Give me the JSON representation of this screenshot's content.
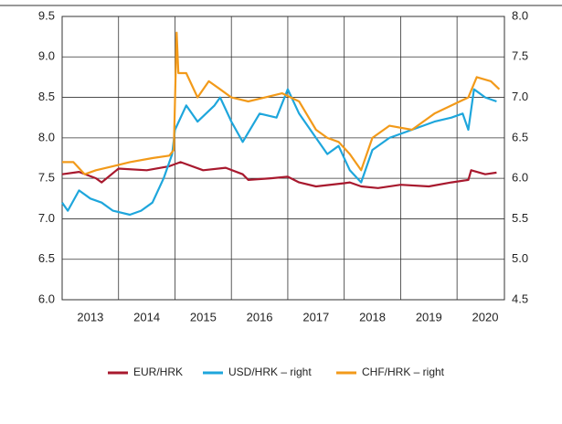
{
  "chart_data": {
    "type": "line",
    "xlim": [
      2013.0,
      2020.84
    ],
    "xticks": [
      {
        "value": 2013,
        "label": "2013"
      },
      {
        "value": 2014,
        "label": "2014"
      },
      {
        "value": 2015,
        "label": "2015"
      },
      {
        "value": 2016,
        "label": "2016"
      },
      {
        "value": 2017,
        "label": "2017"
      },
      {
        "value": 2018,
        "label": "2018"
      },
      {
        "value": 2019,
        "label": "2019"
      },
      {
        "value": 2020,
        "label": "2020"
      }
    ],
    "ylim": [
      6.0,
      9.5
    ],
    "yticks": [
      {
        "value": 6.0,
        "label": "6.0"
      },
      {
        "value": 6.5,
        "label": "6.5"
      },
      {
        "value": 7.0,
        "label": "7.0"
      },
      {
        "value": 7.5,
        "label": "7.5"
      },
      {
        "value": 8.0,
        "label": "8.0"
      },
      {
        "value": 8.5,
        "label": "8.5"
      },
      {
        "value": 9.0,
        "label": "9.0"
      },
      {
        "value": 9.5,
        "label": "9.5"
      }
    ],
    "y2lim": [
      4.5,
      8.0
    ],
    "y2ticks": [
      {
        "value": 4.5,
        "label": "4.5"
      },
      {
        "value": 5.0,
        "label": "5.0"
      },
      {
        "value": 5.5,
        "label": "5.5"
      },
      {
        "value": 6.0,
        "label": "6.0"
      },
      {
        "value": 6.5,
        "label": "6.5"
      },
      {
        "value": 7.0,
        "label": "7.0"
      },
      {
        "value": 7.5,
        "label": "7.5"
      },
      {
        "value": 8.0,
        "label": "8.0"
      }
    ],
    "grid": true,
    "series": [
      {
        "name": "EUR/HRK",
        "color": "#a8192e",
        "x": [
          2013.0,
          2013.3,
          2013.6,
          2013.7,
          2014.0,
          2014.5,
          2014.9,
          2015.1,
          2015.5,
          2015.9,
          2016.2,
          2016.3,
          2016.7,
          2017.0,
          2017.2,
          2017.5,
          2018.0,
          2018.1,
          2018.3,
          2018.6,
          2019.0,
          2019.5,
          2019.9,
          2020.2,
          2020.25,
          2020.5,
          2020.7
        ],
        "values": [
          7.55,
          7.58,
          7.5,
          7.45,
          7.62,
          7.6,
          7.65,
          7.7,
          7.6,
          7.63,
          7.55,
          7.48,
          7.5,
          7.52,
          7.45,
          7.4,
          7.44,
          7.45,
          7.4,
          7.38,
          7.42,
          7.4,
          7.45,
          7.48,
          7.6,
          7.55,
          7.57
        ]
      },
      {
        "name": "USD/HRK – right",
        "color": "#1ea6dc",
        "axis": "y2",
        "x": [
          2013.0,
          2013.1,
          2013.3,
          2013.5,
          2013.7,
          2013.9,
          2014.2,
          2014.4,
          2014.6,
          2014.8,
          2014.95,
          2015.0,
          2015.2,
          2015.4,
          2015.7,
          2015.8,
          2016.0,
          2016.2,
          2016.5,
          2016.8,
          2017.0,
          2017.2,
          2017.5,
          2017.7,
          2017.9,
          2018.1,
          2018.3,
          2018.5,
          2018.8,
          2019.2,
          2019.6,
          2019.9,
          2020.1,
          2020.2,
          2020.3,
          2020.5,
          2020.7
        ],
        "values": [
          5.7,
          5.6,
          5.85,
          5.75,
          5.7,
          5.6,
          5.55,
          5.6,
          5.7,
          6.0,
          6.3,
          6.6,
          6.9,
          6.7,
          6.9,
          7.0,
          6.7,
          6.45,
          6.8,
          6.75,
          7.1,
          6.8,
          6.5,
          6.3,
          6.4,
          6.1,
          5.95,
          6.35,
          6.5,
          6.6,
          6.7,
          6.75,
          6.8,
          6.6,
          7.1,
          7.0,
          6.95
        ]
      },
      {
        "name": "CHF/HRK – right",
        "color": "#f29a1a",
        "axis": "y2",
        "x": [
          2013.0,
          2013.2,
          2013.4,
          2013.6,
          2013.9,
          2014.2,
          2014.6,
          2014.9,
          2014.98,
          2015.03,
          2015.06,
          2015.2,
          2015.4,
          2015.6,
          2015.8,
          2016.0,
          2016.3,
          2016.6,
          2016.9,
          2017.2,
          2017.5,
          2017.7,
          2017.9,
          2018.1,
          2018.3,
          2018.5,
          2018.8,
          2019.2,
          2019.6,
          2019.9,
          2020.2,
          2020.35,
          2020.6,
          2020.75
        ],
        "values": [
          6.2,
          6.2,
          6.05,
          6.1,
          6.15,
          6.2,
          6.25,
          6.28,
          6.35,
          7.8,
          7.3,
          7.3,
          7.0,
          7.2,
          7.1,
          7.0,
          6.95,
          7.0,
          7.05,
          6.95,
          6.6,
          6.5,
          6.45,
          6.3,
          6.1,
          6.5,
          6.65,
          6.6,
          6.8,
          6.9,
          7.0,
          7.25,
          7.2,
          7.1
        ]
      }
    ]
  }
}
